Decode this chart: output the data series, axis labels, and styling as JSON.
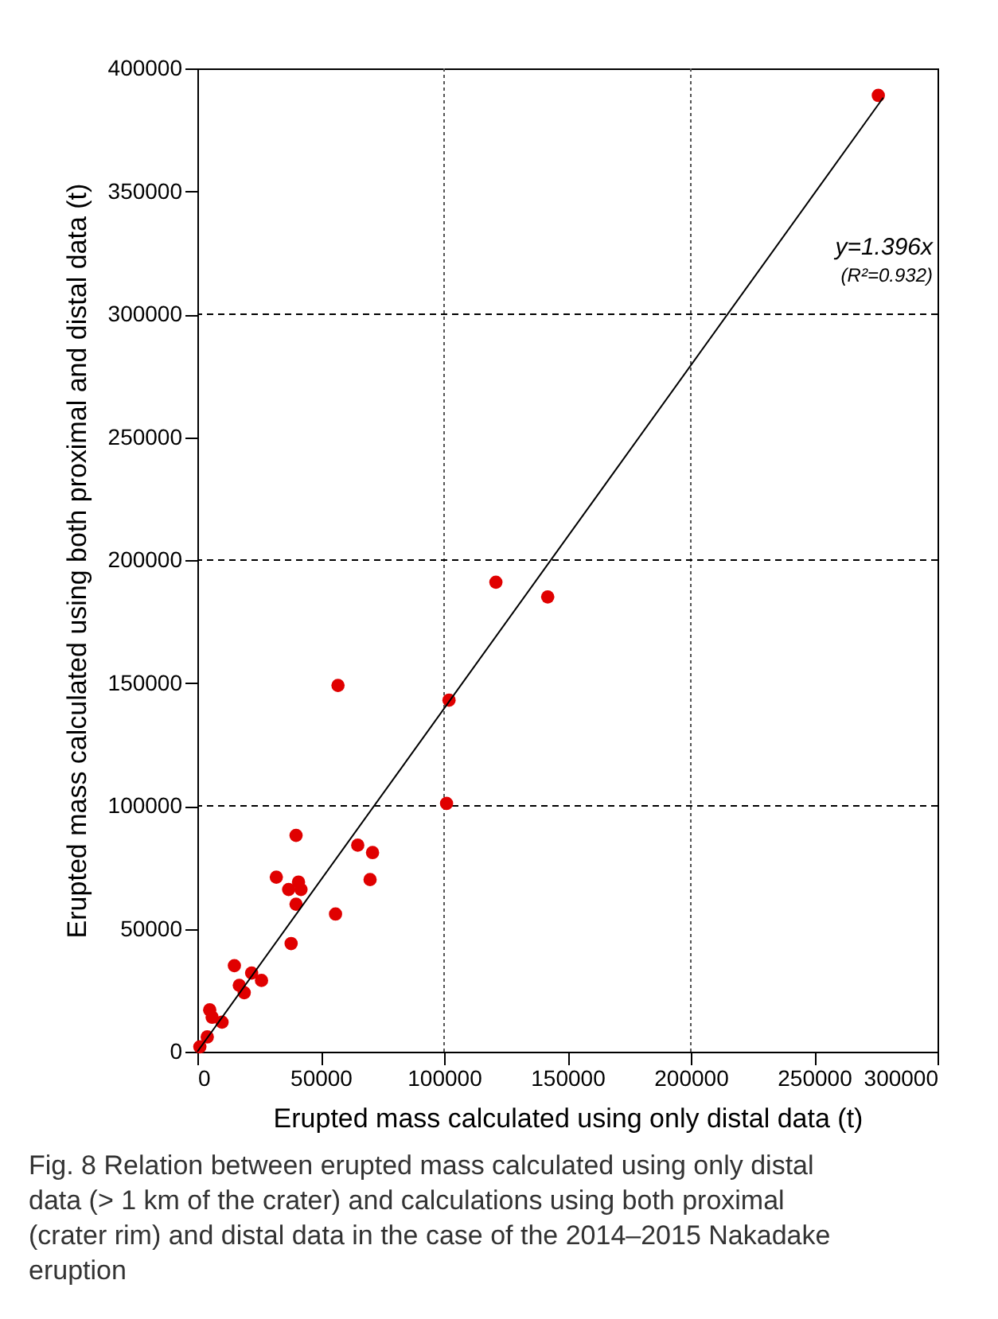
{
  "chart_data": {
    "type": "scatter",
    "title": "Fig. 8  Relation between erupted mass calculated using only distal data (> 1 km of the crater) and calculations using both proximal (crater rim) and distal data in the case of the 2014–2015 Nakadake eruption",
    "xlabel": "Erupted mass calculated using only distal data (t)",
    "ylabel": "Erupted mass calculated using both proximal and distal data (t)",
    "xlim": [
      0,
      300000
    ],
    "ylim": [
      0,
      400000
    ],
    "xticks": [
      0,
      50000,
      100000,
      150000,
      200000,
      250000,
      300000
    ],
    "yticks": [
      0,
      50000,
      100000,
      150000,
      200000,
      250000,
      300000,
      350000,
      400000
    ],
    "grid": false,
    "series": [
      {
        "marker": "circle",
        "color": "#e00000",
        "x": [
          57000,
          102000,
          101000,
          40000,
          65000,
          71000,
          32000,
          41000,
          37000,
          42000,
          70000,
          40000,
          56000,
          38000,
          15000,
          22000,
          26000,
          17000,
          19000,
          5000,
          6000,
          10000,
          4000,
          1000,
          121000,
          142000,
          276000
        ],
        "values": [
          149000,
          143000,
          101000,
          88000,
          84000,
          81000,
          71000,
          69000,
          66000,
          66000,
          70000,
          60000,
          56000,
          44000,
          35000,
          32000,
          29000,
          27000,
          24000,
          17000,
          14000,
          12000,
          6000,
          2000,
          191000,
          185000,
          389000
        ]
      },
      {
        "type": "line",
        "color": "#000000",
        "line_style": "solid",
        "x": [
          0,
          278000
        ],
        "values": [
          0,
          388100
        ]
      }
    ],
    "ref_lines": [
      {
        "axis": "x",
        "value": 100000,
        "color": "#555555",
        "line_style": "dotted"
      },
      {
        "axis": "x",
        "value": 200000,
        "color": "#555555",
        "line_style": "dotted"
      },
      {
        "axis": "y",
        "value": 100000,
        "color": "#000000",
        "line_style": "dashed"
      },
      {
        "axis": "y",
        "value": 200000,
        "color": "#000000",
        "line_style": "dashed"
      },
      {
        "axis": "y",
        "value": 300000,
        "color": "#000000",
        "line_style": "dashed"
      }
    ],
    "annotations": [
      "y=1.396x",
      "(R²=0.932)"
    ]
  }
}
